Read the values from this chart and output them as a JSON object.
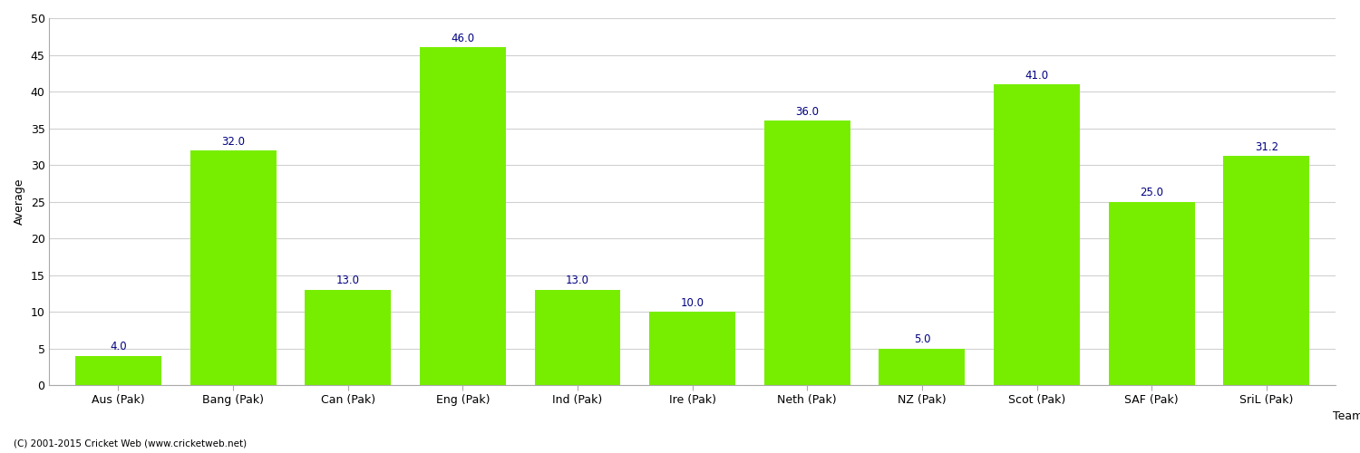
{
  "categories": [
    "Aus (Pak)",
    "Bang (Pak)",
    "Can (Pak)",
    "Eng (Pak)",
    "Ind (Pak)",
    "Ire (Pak)",
    "Neth (Pak)",
    "NZ (Pak)",
    "Scot (Pak)",
    "SAF (Pak)",
    "SriL (Pak)"
  ],
  "values": [
    4.0,
    32.0,
    13.0,
    46.0,
    13.0,
    10.0,
    36.0,
    5.0,
    41.0,
    25.0,
    31.2
  ],
  "bar_color": "#77ee00",
  "bar_edge_color": "#77ee00",
  "label_color": "#000080",
  "xlabel": "Team",
  "ylabel": "Average",
  "ylim": [
    0,
    50
  ],
  "yticks": [
    0,
    5,
    10,
    15,
    20,
    25,
    30,
    35,
    40,
    45,
    50
  ],
  "background_color": "#ffffff",
  "grid_color": "#d0d0d0",
  "footer_text": "(C) 2001-2015 Cricket Web (www.cricketweb.net)",
  "label_fontsize": 8.5,
  "axis_fontsize": 9,
  "xlabel_fontsize": 9
}
